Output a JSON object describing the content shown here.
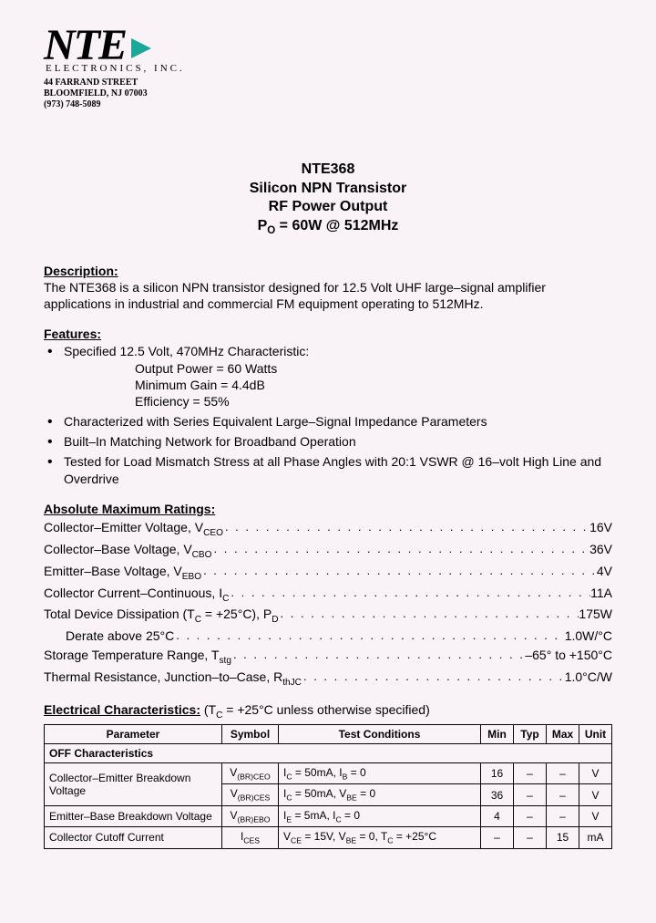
{
  "logo": {
    "text": "NTE",
    "subline": "ELECTRONICS, INC.",
    "address_line1": "44 FARRAND STREET",
    "address_line2": "BLOOMFIELD, NJ 07003",
    "phone": "(973) 748-5089",
    "arrow_color": "#1aa89a"
  },
  "title": {
    "line1": "NTE368",
    "line2": "Silicon NPN Transistor",
    "line3": "RF Power Output",
    "line4": "P",
    "line4_sub": "O",
    "line4_rest": " = 60W @ 512MHz"
  },
  "description": {
    "heading": "Description:",
    "text": "The NTE368 is a silicon NPN transistor designed for 12.5 Volt UHF large–signal amplifier applications in industrial and commercial FM equipment operating to 512MHz."
  },
  "features": {
    "heading": "Features:",
    "items": [
      {
        "text": "Specified 12.5 Volt, 470MHz Characteristic:",
        "subs": [
          "Output Power = 60 Watts",
          "Minimum Gain = 4.4dB",
          "Efficiency = 55%"
        ]
      },
      {
        "text": "Characterized with Series Equivalent Large–Signal Impedance Parameters"
      },
      {
        "text": "Built–In Matching Network for Broadband Operation"
      },
      {
        "text": "Tested for Load Mismatch Stress at all Phase Angles with 20:1 VSWR @ 16–volt High Line and Overdrive"
      }
    ]
  },
  "ratings": {
    "heading": "Absolute Maximum Ratings:",
    "rows": [
      {
        "label_html": "Collector–Emitter Voltage, V<sub>CEO</sub>",
        "value": "16V"
      },
      {
        "label_html": "Collector–Base Voltage, V<sub>CBO</sub>",
        "value": "36V"
      },
      {
        "label_html": "Emitter–Base Voltage, V<sub>EBO</sub>",
        "value": "4V"
      },
      {
        "label_html": "Collector Current–Continuous, I<sub>C</sub>",
        "value": "11A"
      },
      {
        "label_html": "Total Device Dissipation (T<sub>C</sub> = +25°C), P<sub>D</sub>",
        "value": "175W"
      },
      {
        "label_html": "Derate above 25°C",
        "value": "1.0W/°C",
        "indent": true
      },
      {
        "label_html": "Storage Temperature Range, T<sub>stg</sub>",
        "value": "–65° to +150°C"
      },
      {
        "label_html": "Thermal Resistance, Junction–to–Case, R<sub>thJC</sub>",
        "value": "1.0°C/W"
      }
    ]
  },
  "electrical": {
    "heading": "Electrical Characteristics:",
    "condition_html": "  (T<sub>C</sub> = +25°C unless otherwise specified)",
    "headers": [
      "Parameter",
      "Symbol",
      "Test Conditions",
      "Min",
      "Typ",
      "Max",
      "Unit"
    ],
    "section": "OFF Characteristics",
    "rows": [
      {
        "param": "Collector–Emitter Breakdown Voltage",
        "rowspan": 2,
        "symbol_html": "V<sub>(BR)CEO</sub>",
        "cond_html": "I<sub>C</sub> = 50mA, I<sub>B</sub> = 0",
        "min": "16",
        "typ": "–",
        "max": "–",
        "unit": "V"
      },
      {
        "symbol_html": "V<sub>(BR)CES</sub>",
        "cond_html": "I<sub>C</sub> = 50mA, V<sub>BE</sub> = 0",
        "min": "36",
        "typ": "–",
        "max": "–",
        "unit": "V"
      },
      {
        "param": "Emitter–Base Breakdown Voltage",
        "symbol_html": "V<sub>(BR)EBO</sub>",
        "cond_html": "I<sub>E</sub> = 5mA, I<sub>C</sub> = 0",
        "min": "4",
        "typ": "–",
        "max": "–",
        "unit": "V"
      },
      {
        "param": "Collector Cutoff Current",
        "symbol_html": "I<sub>CES</sub>",
        "cond_html": "V<sub>CE</sub> = 15V, V<sub>BE</sub> = 0, T<sub>C</sub> = +25°C",
        "min": "–",
        "typ": "–",
        "max": "15",
        "unit": "mA"
      }
    ]
  },
  "colors": {
    "page_bg": "#f9f3f7",
    "text": "#000000",
    "border": "#000000"
  }
}
